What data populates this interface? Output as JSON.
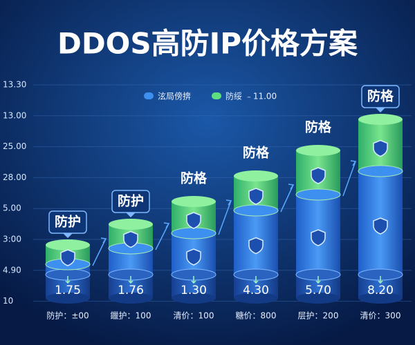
{
  "title": "DDOS高防IP价格方案",
  "y_axis_labels": [
    "13.30",
    "13.00",
    "25.00",
    "28.00",
    "5.00",
    "3:00",
    "4.90",
    "10"
  ],
  "legend": [
    {
      "label": "泫局傍捹"
    },
    {
      "label": "防绥 ﹣11.00"
    }
  ],
  "columns": [
    {
      "badge": "防护",
      "value": "1.75",
      "category": "防护：±00"
    },
    {
      "badge": "防护",
      "value": "1.76",
      "category": "鑞护：100"
    },
    {
      "badge": "防格",
      "value": "1.30",
      "category": "清价：100"
    },
    {
      "badge": "防格",
      "value": "4.30",
      "category": "糖价：800"
    },
    {
      "badge": "防格",
      "value": "5.70",
      "category": "层护：200"
    },
    {
      "badge": "防格",
      "value": "8.20",
      "category": "清价：300"
    }
  ]
}
